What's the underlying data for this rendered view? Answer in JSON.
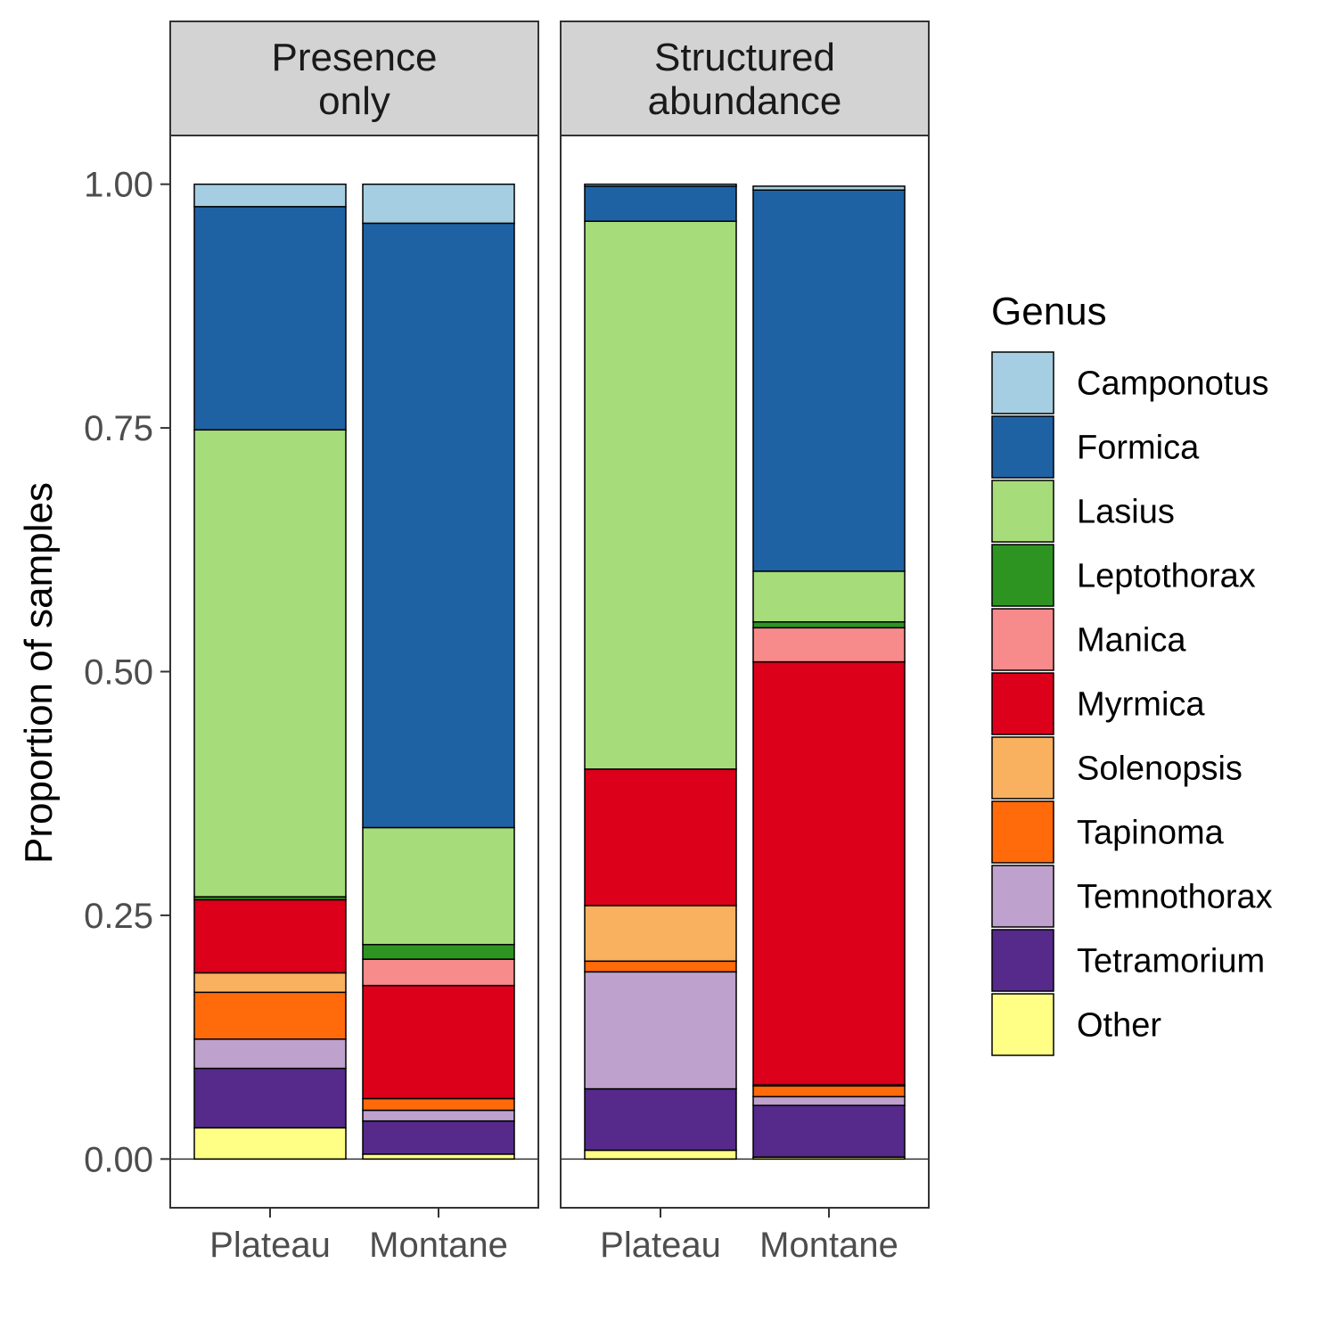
{
  "chart_data": {
    "type": "bar",
    "stacked": true,
    "ylabel": "Proportion of samples",
    "ylim": [
      -0.05,
      1.05
    ],
    "yticks": [
      "0.00",
      "0.25",
      "0.50",
      "0.75",
      "1.00"
    ],
    "ytick_values": [
      0,
      0.25,
      0.5,
      0.75,
      1.0
    ],
    "categories": [
      "Plateau",
      "Montane"
    ],
    "legend": {
      "title": "Genus",
      "position": "right",
      "entries": [
        {
          "name": "Camponotus",
          "color": "#A6CEE3"
        },
        {
          "name": "Formica",
          "color": "#1F62A4"
        },
        {
          "name": "Lasius",
          "color": "#A6DC7A"
        },
        {
          "name": "Leptothorax",
          "color": "#2E9421"
        },
        {
          "name": "Manica",
          "color": "#F78A8A"
        },
        {
          "name": "Myrmica",
          "color": "#DC001A"
        },
        {
          "name": "Solenopsis",
          "color": "#F9B15F"
        },
        {
          "name": "Tapinoma",
          "color": "#FF6A0A"
        },
        {
          "name": "Temnothorax",
          "color": "#BEA1CC"
        },
        {
          "name": "Tetramorium",
          "color": "#552A8B"
        },
        {
          "name": "Other",
          "color": "#FFFF85"
        }
      ]
    },
    "panels": [
      {
        "title_line1": "Presence",
        "title_line2": "only",
        "bars": [
          {
            "category": "Plateau",
            "segments": [
              {
                "genus": "Other",
                "value": 0.032
              },
              {
                "genus": "Tetramorium",
                "value": 0.061
              },
              {
                "genus": "Temnothorax",
                "value": 0.03
              },
              {
                "genus": "Tapinoma",
                "value": 0.048
              },
              {
                "genus": "Solenopsis",
                "value": 0.02
              },
              {
                "genus": "Myrmica",
                "value": 0.075
              },
              {
                "genus": "Manica",
                "value": 0.0
              },
              {
                "genus": "Leptothorax",
                "value": 0.003
              },
              {
                "genus": "Lasius",
                "value": 0.479
              },
              {
                "genus": "Formica",
                "value": 0.229
              },
              {
                "genus": "Camponotus",
                "value": 0.023
              }
            ]
          },
          {
            "category": "Montane",
            "segments": [
              {
                "genus": "Other",
                "value": 0.005
              },
              {
                "genus": "Tetramorium",
                "value": 0.034
              },
              {
                "genus": "Temnothorax",
                "value": 0.011
              },
              {
                "genus": "Tapinoma",
                "value": 0.012
              },
              {
                "genus": "Solenopsis",
                "value": 0.0
              },
              {
                "genus": "Myrmica",
                "value": 0.116
              },
              {
                "genus": "Manica",
                "value": 0.027
              },
              {
                "genus": "Leptothorax",
                "value": 0.015
              },
              {
                "genus": "Lasius",
                "value": 0.12
              },
              {
                "genus": "Formica",
                "value": 0.62
              },
              {
                "genus": "Camponotus",
                "value": 0.04
              }
            ]
          }
        ]
      },
      {
        "title_line1": "Structured",
        "title_line2": "abundance",
        "bars": [
          {
            "category": "Plateau",
            "segments": [
              {
                "genus": "Other",
                "value": 0.009
              },
              {
                "genus": "Tetramorium",
                "value": 0.063
              },
              {
                "genus": "Temnothorax",
                "value": 0.12
              },
              {
                "genus": "Tapinoma",
                "value": 0.011
              },
              {
                "genus": "Solenopsis",
                "value": 0.057
              },
              {
                "genus": "Myrmica",
                "value": 0.14
              },
              {
                "genus": "Manica",
                "value": 0.0
              },
              {
                "genus": "Leptothorax",
                "value": 0.0
              },
              {
                "genus": "Lasius",
                "value": 0.562
              },
              {
                "genus": "Formica",
                "value": 0.036
              },
              {
                "genus": "Camponotus",
                "value": 0.002
              }
            ]
          },
          {
            "category": "Montane",
            "segments": [
              {
                "genus": "Other",
                "value": 0.002
              },
              {
                "genus": "Tetramorium",
                "value": 0.053
              },
              {
                "genus": "Temnothorax",
                "value": 0.009
              },
              {
                "genus": "Tapinoma",
                "value": 0.011
              },
              {
                "genus": "Solenopsis",
                "value": 0.001
              },
              {
                "genus": "Myrmica",
                "value": 0.434
              },
              {
                "genus": "Manica",
                "value": 0.035
              },
              {
                "genus": "Leptothorax",
                "value": 0.006
              },
              {
                "genus": "Lasius",
                "value": 0.052
              },
              {
                "genus": "Formica",
                "value": 0.391
              },
              {
                "genus": "Camponotus",
                "value": 0.004
              }
            ]
          }
        ]
      }
    ]
  }
}
